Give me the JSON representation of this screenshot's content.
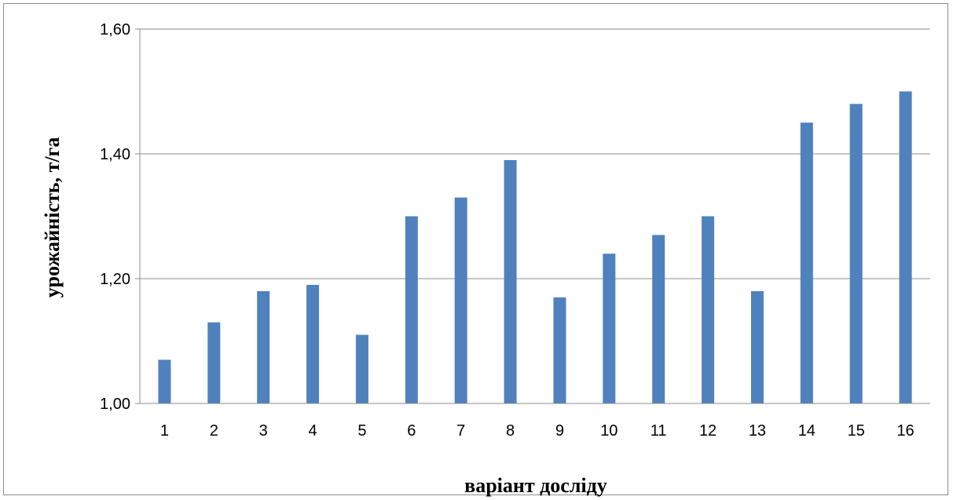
{
  "chart_data": {
    "type": "bar",
    "title": "",
    "xlabel": "варіант досліду",
    "ylabel": "урожайність, т/га",
    "categories": [
      "1",
      "2",
      "3",
      "4",
      "5",
      "6",
      "7",
      "8",
      "9",
      "10",
      "11",
      "12",
      "13",
      "14",
      "15",
      "16"
    ],
    "values": [
      1.07,
      1.13,
      1.18,
      1.19,
      1.11,
      1.3,
      1.33,
      1.39,
      1.17,
      1.24,
      1.27,
      1.3,
      1.18,
      1.45,
      1.48,
      1.5
    ],
    "ylim": [
      1.0,
      1.6
    ],
    "yticks": [
      "1,00",
      "1,20",
      "1,40",
      "1,60"
    ],
    "grid": true,
    "legend": "none",
    "colors": {
      "bar": "#4f81bd",
      "gridline": "#8c8c8c",
      "axis": "#8c8c8c"
    }
  }
}
